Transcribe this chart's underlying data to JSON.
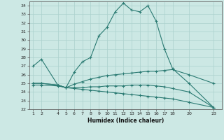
{
  "xlabel": "Humidex (Indice chaleur)",
  "bg_color": "#cce8e4",
  "line_color": "#2a7a72",
  "grid_color": "#aad0cc",
  "ylim": [
    22,
    34.5
  ],
  "xlim": [
    0.5,
    24
  ],
  "yticks": [
    22,
    23,
    24,
    25,
    26,
    27,
    28,
    29,
    30,
    31,
    32,
    33,
    34
  ],
  "xticks": [
    1,
    2,
    4,
    5,
    6,
    7,
    8,
    9,
    10,
    11,
    12,
    13,
    14,
    15,
    16,
    17,
    18,
    20,
    23
  ],
  "line1_x": [
    1,
    2,
    4,
    5,
    6,
    7,
    8,
    9,
    10,
    11,
    12,
    13,
    14,
    15,
    16,
    17,
    18,
    20,
    23
  ],
  "line1_y": [
    27.0,
    27.8,
    24.8,
    24.5,
    26.3,
    27.5,
    28.0,
    30.5,
    31.5,
    33.3,
    34.3,
    33.5,
    33.3,
    34.0,
    32.2,
    29.0,
    26.7,
    25.0,
    22.2
  ],
  "line2_x": [
    1,
    2,
    4,
    5,
    6,
    7,
    8,
    9,
    10,
    11,
    12,
    13,
    14,
    15,
    16,
    17,
    18,
    20,
    23
  ],
  "line2_y": [
    24.8,
    24.8,
    24.7,
    24.5,
    24.9,
    25.2,
    25.5,
    25.7,
    25.9,
    26.0,
    26.1,
    26.2,
    26.3,
    26.4,
    26.4,
    26.5,
    26.6,
    26.0,
    25.0
  ],
  "line3_x": [
    1,
    2,
    4,
    5,
    6,
    7,
    8,
    9,
    10,
    11,
    12,
    13,
    14,
    15,
    16,
    17,
    18,
    20,
    23
  ],
  "line3_y": [
    25.0,
    25.0,
    24.8,
    24.5,
    24.4,
    24.3,
    24.2,
    24.1,
    24.0,
    23.9,
    23.8,
    23.7,
    23.6,
    23.5,
    23.4,
    23.3,
    23.2,
    22.8,
    22.2
  ],
  "line4_x": [
    1,
    2,
    4,
    5,
    6,
    7,
    8,
    9,
    10,
    11,
    12,
    13,
    14,
    15,
    16,
    17,
    18,
    20,
    23
  ],
  "line4_y": [
    25.0,
    25.0,
    24.8,
    24.5,
    24.5,
    24.5,
    24.6,
    24.6,
    24.7,
    24.7,
    24.7,
    24.8,
    24.8,
    24.8,
    24.7,
    24.6,
    24.4,
    24.0,
    22.2
  ]
}
